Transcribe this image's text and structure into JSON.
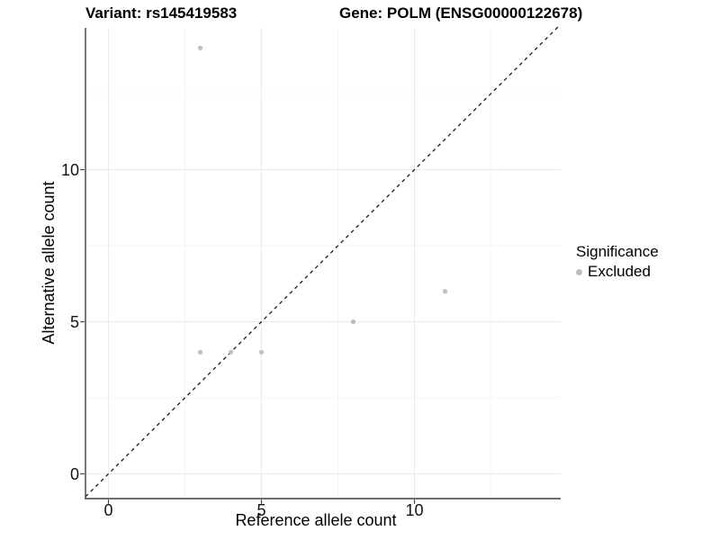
{
  "title": {
    "variant": "Variant: rs145419583",
    "gene": "Gene: POLM (ENSG00000122678)"
  },
  "axes": {
    "x": {
      "label": "Reference allele count"
    },
    "y": {
      "label": "Alternative allele count"
    }
  },
  "legend": {
    "title": "Significance",
    "items": [
      {
        "label": "Excluded",
        "color": "#bfbfbf"
      }
    ]
  },
  "chart_data": {
    "type": "scatter",
    "title": "Variant: rs145419583 / Gene: POLM (ENSG00000122678)",
    "xlabel": "Reference allele count",
    "ylabel": "Alternative allele count",
    "xlim": [
      -0.75,
      14.8
    ],
    "ylim": [
      -0.8,
      14.7
    ],
    "x_major_ticks": [
      0,
      5,
      10
    ],
    "y_major_ticks": [
      0,
      5,
      10
    ],
    "x_minor_gridlines": [
      2.5,
      7.5,
      12.5
    ],
    "y_minor_gridlines": [
      2.5,
      7.5,
      12.5
    ],
    "grid": true,
    "legend_position": "right",
    "series": [
      {
        "name": "Excluded",
        "color": "#bfbfbf",
        "marker": "circle",
        "points": [
          [
            3,
            14
          ],
          [
            3,
            4
          ],
          [
            4,
            4
          ],
          [
            5,
            4
          ],
          [
            8,
            5
          ],
          [
            11,
            6
          ]
        ]
      }
    ],
    "reference_line": {
      "type": "identity y=x",
      "style": "dashed",
      "color": "#1a1a1a"
    }
  },
  "style": {
    "point_color": "#bfbfbf",
    "grid_major_color": "#eaeaea",
    "grid_minor_color": "#f4f4f4",
    "axis_line_color": "#404040",
    "tick_text_color": "#141414",
    "background": "#ffffff"
  }
}
